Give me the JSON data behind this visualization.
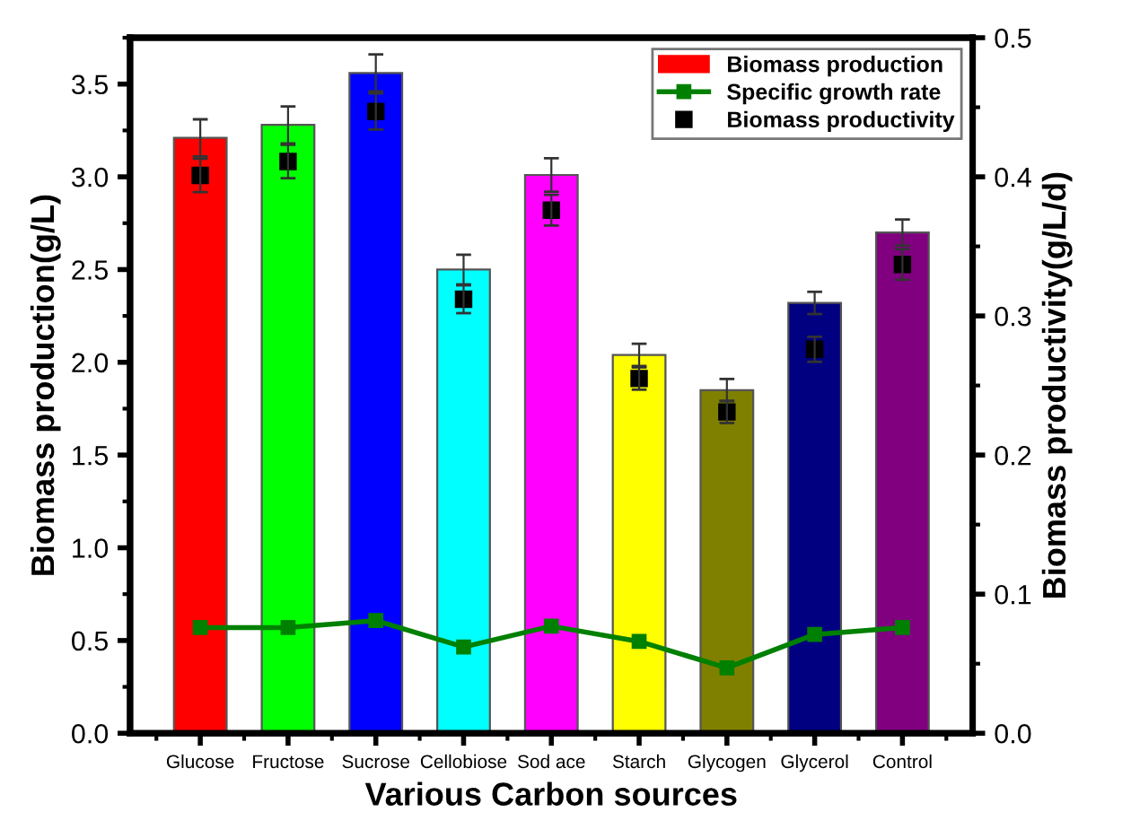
{
  "chart_data": {
    "type": "bar",
    "xlabel": "Various Carbon sources",
    "ylabel": "Biomass production(g/L)",
    "y2label": "Biomass productivity(g/L/d)",
    "categories": [
      "Glucose",
      "Fructose",
      "Sucrose",
      "Cellobiose",
      "Sod ace",
      "Starch",
      "Glycogen",
      "Glycerol",
      "Control"
    ],
    "series": [
      {
        "name": "Biomass production",
        "colors": [
          "#ff0000",
          "#00ff00",
          "#0000ff",
          "#00ffff",
          "#ff00ff",
          "#ffff00",
          "#808000",
          "#000080",
          "#800080"
        ],
        "color": "#ff0000",
        "values": [
          3.21,
          3.28,
          3.56,
          2.5,
          3.01,
          2.04,
          1.85,
          2.32,
          2.7
        ],
        "errors": [
          0.1,
          0.1,
          0.1,
          0.08,
          0.09,
          0.06,
          0.06,
          0.06,
          0.07
        ]
      },
      {
        "name": "Specific growth rate",
        "type": "line",
        "axis": "y2",
        "color": "#008000",
        "marker": "square",
        "values": [
          0.076,
          0.076,
          0.081,
          0.062,
          0.077,
          0.066,
          0.047,
          0.071,
          0.076
        ]
      },
      {
        "name": "Biomass productivity",
        "type": "scatter",
        "axis": "y2",
        "color": "#000000",
        "marker": "square",
        "values": [
          0.401,
          0.411,
          0.447,
          0.312,
          0.376,
          0.255,
          0.231,
          0.276,
          0.337
        ],
        "errors": [
          0.012,
          0.012,
          0.013,
          0.01,
          0.011,
          0.008,
          0.008,
          0.009,
          0.011
        ]
      }
    ],
    "ylim": [
      0,
      3.75
    ],
    "yticks": [
      {
        "value": 0,
        "label": "0.0"
      },
      0.5,
      {
        "value": 1,
        "label": "1.0"
      },
      1.5,
      {
        "value": 2,
        "label": "2.0"
      },
      2.5,
      {
        "value": 3,
        "label": "3.0"
      },
      3.5
    ],
    "y2lim": [
      0,
      0.5
    ],
    "y2ticks": [
      {
        "value": 0,
        "label": "0.0"
      },
      0.1,
      0.2,
      0.3,
      0.4,
      0.5
    ],
    "legend": "top right",
    "grid": false
  }
}
